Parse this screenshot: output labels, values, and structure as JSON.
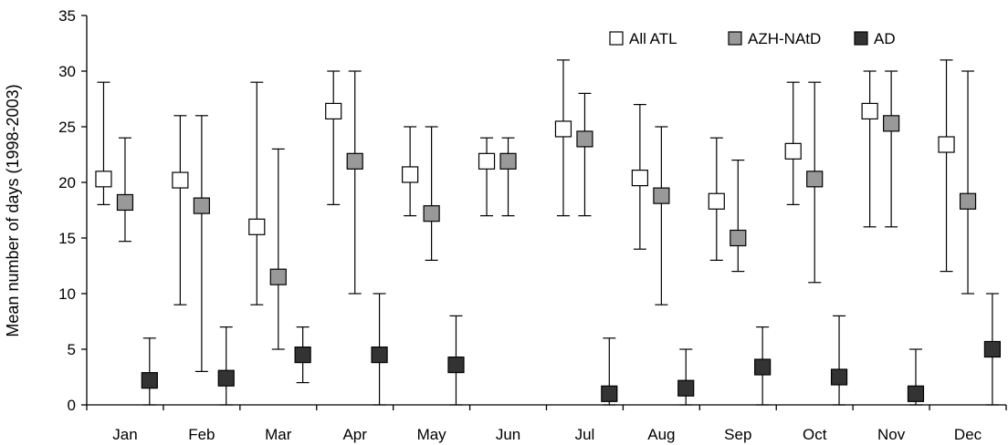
{
  "chart_data": {
    "type": "scatter",
    "title": "",
    "xlabel": "",
    "ylabel": "Mean number of days (1998-2003)",
    "ylim": [
      0,
      35
    ],
    "yticks": [
      0,
      5,
      10,
      15,
      20,
      25,
      30,
      35
    ],
    "grid": false,
    "legend_position": "top-right",
    "categories": [
      "Jan",
      "Feb",
      "Mar",
      "Apr",
      "May",
      "Jun",
      "Jul",
      "Aug",
      "Sep",
      "Oct",
      "Nov",
      "Dec"
    ],
    "series": [
      {
        "name": "All ATL",
        "marker_color": "#ffffff",
        "mean": [
          20.3,
          20.2,
          16.0,
          26.4,
          20.7,
          21.9,
          24.8,
          20.4,
          18.3,
          22.8,
          26.4,
          23.4
        ],
        "min": [
          18,
          9,
          9,
          18,
          17,
          17,
          17,
          14,
          13,
          18,
          16,
          12
        ],
        "max": [
          29,
          26,
          29,
          30,
          25,
          24,
          31,
          27,
          24,
          29,
          30,
          31
        ]
      },
      {
        "name": "AZH-NAtD",
        "marker_color": "#999999",
        "mean": [
          18.2,
          17.9,
          11.5,
          21.9,
          17.2,
          21.9,
          23.9,
          18.8,
          15.0,
          20.3,
          25.3,
          18.3
        ],
        "min": [
          14.7,
          3,
          5,
          10,
          13,
          17,
          17,
          9,
          12,
          11,
          16,
          10
        ],
        "max": [
          24,
          26,
          23,
          30,
          25,
          24,
          28,
          25,
          22,
          29,
          30,
          30
        ]
      },
      {
        "name": "AD",
        "marker_color": "#333333",
        "mean": [
          2.2,
          2.4,
          4.5,
          4.5,
          3.6,
          null,
          1.0,
          1.5,
          3.4,
          2.5,
          1.0,
          5.0
        ],
        "min": [
          0,
          0,
          2,
          0,
          0,
          null,
          0,
          0,
          0,
          0,
          0,
          0
        ],
        "max": [
          6,
          7,
          7,
          10,
          8,
          null,
          6,
          5,
          7,
          8,
          5,
          10
        ]
      }
    ]
  }
}
